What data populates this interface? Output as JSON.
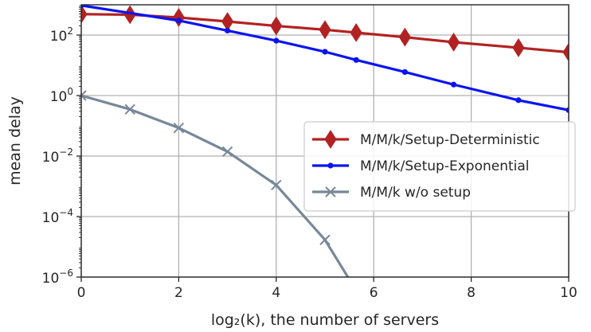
{
  "chart_data": {
    "type": "line",
    "xlabel": "log₂(k), the number of servers",
    "ylabel": "mean delay",
    "xlim": [
      0,
      10
    ],
    "ylim_log10": [
      -6,
      3
    ],
    "yscale": "log",
    "grid": true,
    "legend_position": "right",
    "x_ticks": [
      0,
      2,
      4,
      6,
      8,
      10
    ],
    "y_ticks": [
      {
        "base": "10",
        "exp": "2",
        "value": 100
      },
      {
        "base": "10",
        "exp": "0",
        "value": 1
      },
      {
        "base": "10",
        "exp": "−2",
        "value": 0.01
      },
      {
        "base": "10",
        "exp": "−4",
        "value": 0.0001
      },
      {
        "base": "10",
        "exp": "−6",
        "value": 1e-06
      }
    ],
    "series": [
      {
        "name": "M/M/k/Setup-Deterministic",
        "color": "#b22222",
        "marker": "diamond",
        "x": [
          0,
          1,
          2,
          3,
          4,
          5,
          5.64,
          6.64,
          7.64,
          8.97,
          10
        ],
        "y": [
          490,
          470,
          380,
          280,
          200,
          150,
          120,
          85,
          58,
          38,
          27
        ]
      },
      {
        "name": "M/M/k/Setup-Exponential",
        "color": "#0a14f0",
        "marker": "circle",
        "x": [
          0,
          2,
          3,
          4,
          5,
          5.64,
          6.64,
          7.64,
          8.97,
          10
        ],
        "y": [
          950,
          300,
          140,
          65,
          28,
          15,
          6,
          2.3,
          0.7,
          0.33
        ]
      },
      {
        "name": "M/M/k w/o setup",
        "color": "#778899",
        "marker": "x",
        "x": [
          0,
          1,
          2,
          3,
          4,
          5,
          5.47
        ],
        "y": [
          1.0,
          0.35,
          0.085,
          0.014,
          0.0011,
          1.7e-05,
          1e-06
        ]
      }
    ]
  }
}
